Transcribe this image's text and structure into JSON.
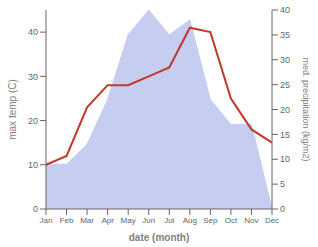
{
  "chart_data": {
    "type": "line",
    "categories": [
      "Jan",
      "Feb",
      "Mar",
      "Apr",
      "May",
      "Jun",
      "Jul",
      "Aug",
      "Sep",
      "Oct",
      "Nov",
      "Dec"
    ],
    "xlabel": "date (month)",
    "ylabel": "max temp (C)",
    "y2label": "med. precipitation (kg/m2)",
    "ylim": [
      0,
      45
    ],
    "yticks": [
      0,
      10,
      20,
      30,
      40
    ],
    "y2lim": [
      0,
      40
    ],
    "y2ticks": [
      0,
      5,
      10,
      15,
      20,
      25,
      30,
      35,
      40
    ],
    "grid": false,
    "series": [
      {
        "type": "area",
        "axis": "y2",
        "color": "#c5cdf0",
        "values": [
          9,
          9,
          13,
          22,
          35,
          40,
          35,
          38,
          22,
          17,
          17,
          0
        ]
      },
      {
        "type": "line",
        "color": "#c0392b",
        "values": [
          10,
          12,
          23,
          28,
          28,
          30,
          32,
          41,
          40,
          25,
          18,
          15
        ]
      }
    ]
  }
}
